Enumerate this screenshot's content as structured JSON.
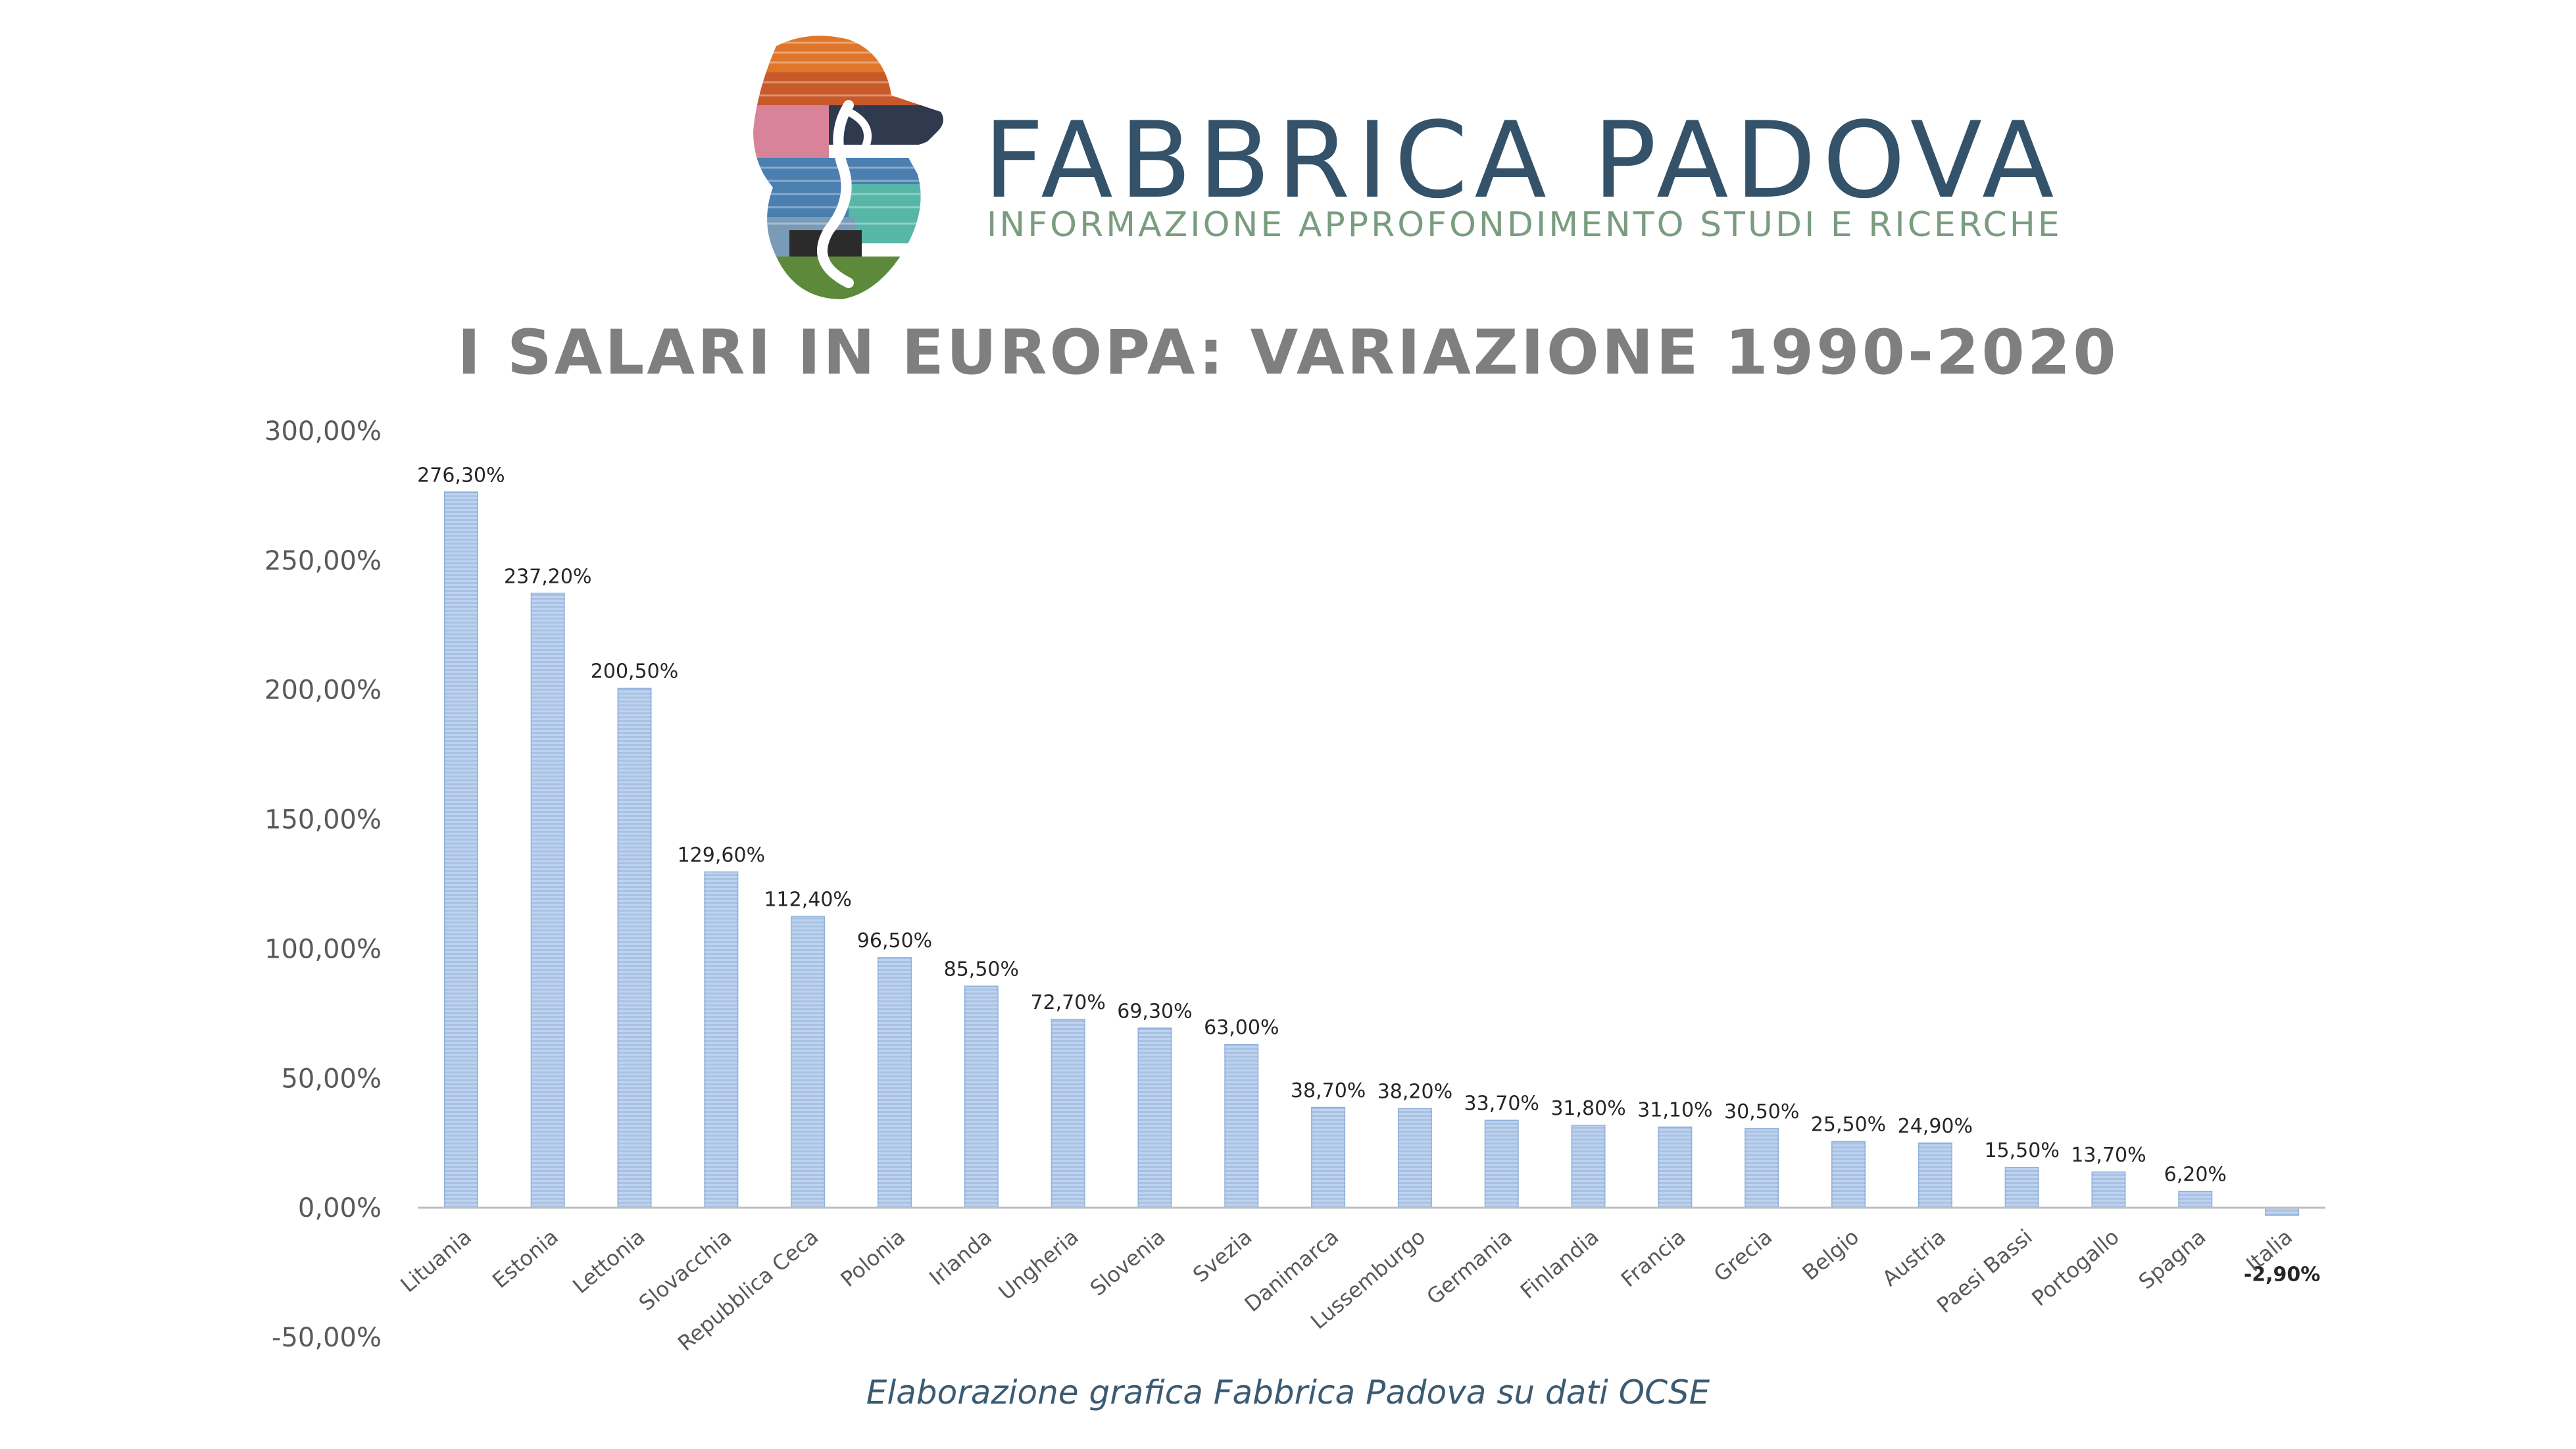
{
  "header": {
    "brand_name": "FABBRICA PADOVA",
    "brand_tagline": "INFORMAZIONE APPROFONDIMENTO STUDI E RICERCHE",
    "logo_icon": "lion-head-logo-icon"
  },
  "chart_data": {
    "type": "bar",
    "title": "I SALARI IN EUROPA: VARIAZIONE 1990-2020",
    "xlabel": "",
    "ylabel": "",
    "ylim": [
      -50,
      300
    ],
    "yticks": [
      300,
      250,
      200,
      150,
      100,
      50,
      0,
      -50
    ],
    "ytick_labels": [
      "300,00%",
      "250,00%",
      "200,00%",
      "150,00%",
      "100,00%",
      "50,00%",
      "0,00%",
      "-50,00%"
    ],
    "grid": false,
    "bar_color": "#a8c2e6",
    "categories": [
      "Lituania",
      "Estonia",
      "Lettonia",
      "Slovacchia",
      "Repubblica Ceca",
      "Polonia",
      "Irlanda",
      "Ungheria",
      "Slovenia",
      "Svezia",
      "Danimarca",
      "Lussemburgo",
      "Germania",
      "Finlandia",
      "Francia",
      "Grecia",
      "Belgio",
      "Austria",
      "Paesi Bassi",
      "Portogallo",
      "Spagna",
      "Italia"
    ],
    "values": [
      276.3,
      237.2,
      200.5,
      129.6,
      112.4,
      96.5,
      85.5,
      72.7,
      69.3,
      63.0,
      38.7,
      38.2,
      33.7,
      31.8,
      31.1,
      30.5,
      25.5,
      24.9,
      15.5,
      13.7,
      6.2,
      -2.9
    ],
    "data_labels": [
      "276,30%",
      "237,20%",
      "200,50%",
      "129,60%",
      "112,40%",
      "96,50%",
      "85,50%",
      "72,70%",
      "69,30%",
      "63,00%",
      "38,70%",
      "38,20%",
      "33,70%",
      "31,80%",
      "31,10%",
      "30,50%",
      "25,50%",
      "24,90%",
      "15,50%",
      "13,70%",
      "6,20%",
      "-2,90%"
    ]
  },
  "footer": {
    "source_note": "Elaborazione grafica Fabbrica Padova su dati OCSE"
  }
}
